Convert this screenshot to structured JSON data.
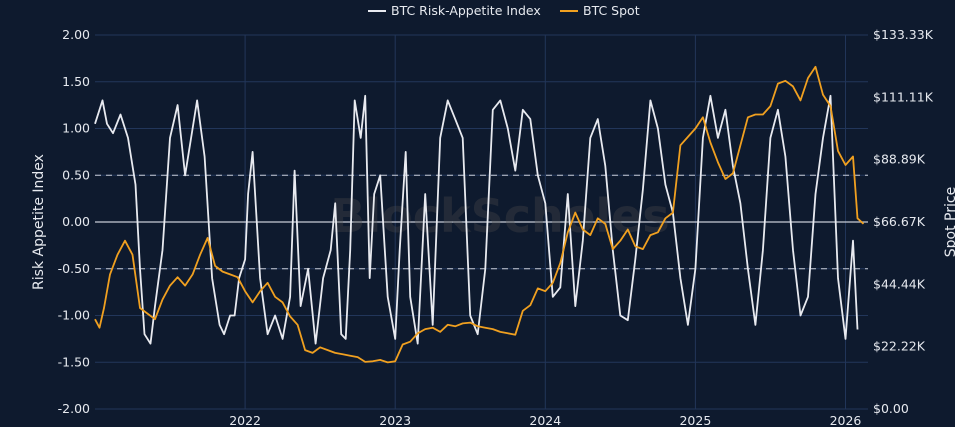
{
  "chart_data": {
    "type": "line",
    "title": "",
    "watermark": "BlockScholes",
    "legend": {
      "placement": "top-center",
      "entries": [
        "BTC Risk-Appetite Index",
        "BTC Spot"
      ]
    },
    "y_left": {
      "label": "Risk Appetite Index",
      "range": [
        -2.0,
        2.0
      ],
      "ticks": [
        "2.00",
        "1.50",
        "1.00",
        "0.50",
        "0.00",
        "-0.50",
        "-1.00",
        "-1.50",
        "-2.00"
      ],
      "tick_values": [
        2.0,
        1.5,
        1.0,
        0.5,
        0.0,
        -0.5,
        -1.0,
        -1.5,
        -2.0
      ]
    },
    "y_right": {
      "label": "Spot Price",
      "range": [
        0,
        133330
      ],
      "ticks": [
        "$133.33K",
        "$111.11K",
        "$88.89K",
        "$66.67K",
        "$44.44K",
        "$22.22K",
        "$0.00"
      ],
      "tick_values": [
        133330,
        111110,
        88890,
        66670,
        44440,
        22220,
        0
      ]
    },
    "x_axis": {
      "range": [
        2021.0,
        2026.15
      ],
      "ticks": [
        "2022",
        "2023",
        "2024",
        "2025",
        "2026"
      ],
      "tick_values": [
        2022,
        2023,
        2024,
        2025,
        2026
      ]
    },
    "reference_lines": {
      "solid": [
        0.0
      ],
      "dashed": [
        0.5,
        -0.5
      ]
    },
    "colors": {
      "background": "#0e1a2e",
      "grid": "#22365a",
      "axis_text": "#e6e9ef",
      "risk_index": "#e8eaf0",
      "spot": "#f0a020",
      "ref_line": "#c8ccd6"
    },
    "series": [
      {
        "name": "BTC Risk-Appetite Index",
        "axis": "left",
        "color": "#e8eaf0",
        "x": [
          2021.0,
          2021.05,
          2021.08,
          2021.12,
          2021.17,
          2021.22,
          2021.27,
          2021.3,
          2021.33,
          2021.37,
          2021.4,
          2021.45,
          2021.5,
          2021.55,
          2021.6,
          2021.68,
          2021.73,
          2021.78,
          2021.83,
          2021.86,
          2021.9,
          2021.93,
          2021.96,
          2022.0,
          2022.02,
          2022.05,
          2022.1,
          2022.15,
          2022.2,
          2022.25,
          2022.3,
          2022.33,
          2022.37,
          2022.42,
          2022.47,
          2022.52,
          2022.57,
          2022.6,
          2022.64,
          2022.67,
          2022.7,
          2022.73,
          2022.77,
          2022.8,
          2022.83,
          2022.86,
          2022.9,
          2022.95,
          2023.0,
          2023.03,
          2023.07,
          2023.1,
          2023.15,
          2023.2,
          2023.25,
          2023.3,
          2023.35,
          2023.4,
          2023.45,
          2023.5,
          2023.55,
          2023.6,
          2023.65,
          2023.7,
          2023.75,
          2023.8,
          2023.85,
          2023.9,
          2023.95,
          2024.0,
          2024.05,
          2024.1,
          2024.15,
          2024.2,
          2024.25,
          2024.3,
          2024.35,
          2024.4,
          2024.45,
          2024.5,
          2024.55,
          2024.6,
          2024.65,
          2024.7,
          2024.75,
          2024.8,
          2024.85,
          2024.9,
          2024.95,
          2025.0,
          2025.05,
          2025.1,
          2025.15,
          2025.2,
          2025.25,
          2025.3,
          2025.35,
          2025.4,
          2025.45,
          2025.5,
          2025.55,
          2025.6,
          2025.65,
          2025.7,
          2025.75,
          2025.8,
          2025.85,
          2025.9,
          2025.95,
          2026.0,
          2026.05,
          2026.08
        ],
        "values": [
          1.05,
          1.3,
          1.05,
          0.95,
          1.15,
          0.9,
          0.4,
          -0.5,
          -1.2,
          -1.3,
          -0.9,
          -0.3,
          0.9,
          1.25,
          0.5,
          1.3,
          0.7,
          -0.6,
          -1.1,
          -1.2,
          -1.0,
          -1.0,
          -0.6,
          -0.4,
          0.3,
          0.75,
          -0.6,
          -1.2,
          -1.0,
          -1.25,
          -0.8,
          0.55,
          -0.9,
          -0.5,
          -1.3,
          -0.6,
          -0.3,
          0.2,
          -1.2,
          -1.25,
          -0.3,
          1.3,
          0.9,
          1.35,
          -0.6,
          0.3,
          0.5,
          -0.8,
          -1.25,
          -0.3,
          0.75,
          -0.8,
          -1.3,
          0.3,
          -1.1,
          0.9,
          1.3,
          1.1,
          0.9,
          -1.0,
          -1.2,
          -0.5,
          1.2,
          1.3,
          1.0,
          0.55,
          1.2,
          1.1,
          0.5,
          0.2,
          -0.8,
          -0.7,
          0.3,
          -0.9,
          -0.2,
          0.9,
          1.1,
          0.6,
          -0.3,
          -1.0,
          -1.05,
          -0.4,
          0.35,
          1.3,
          1.0,
          0.4,
          0.1,
          -0.6,
          -1.1,
          -0.5,
          0.9,
          1.35,
          0.9,
          1.2,
          0.6,
          0.2,
          -0.5,
          -1.1,
          -0.3,
          0.9,
          1.2,
          0.7,
          -0.3,
          -1.0,
          -0.8,
          0.3,
          0.9,
          1.35,
          -0.6,
          -1.25,
          -0.2,
          -1.15
        ]
      },
      {
        "name": "BTC Spot",
        "axis": "right",
        "color": "#f0a020",
        "x": [
          2021.0,
          2021.03,
          2021.06,
          2021.1,
          2021.15,
          2021.2,
          2021.25,
          2021.3,
          2021.35,
          2021.4,
          2021.45,
          2021.5,
          2021.55,
          2021.6,
          2021.65,
          2021.7,
          2021.75,
          2021.8,
          2021.85,
          2021.9,
          2021.95,
          2022.0,
          2022.05,
          2022.1,
          2022.15,
          2022.2,
          2022.25,
          2022.3,
          2022.35,
          2022.4,
          2022.45,
          2022.5,
          2022.55,
          2022.6,
          2022.65,
          2022.7,
          2022.75,
          2022.8,
          2022.85,
          2022.9,
          2022.95,
          2023.0,
          2023.05,
          2023.1,
          2023.15,
          2023.2,
          2023.25,
          2023.3,
          2023.35,
          2023.4,
          2023.45,
          2023.5,
          2023.55,
          2023.6,
          2023.65,
          2023.7,
          2023.75,
          2023.8,
          2023.85,
          2023.9,
          2023.95,
          2024.0,
          2024.05,
          2024.1,
          2024.15,
          2024.2,
          2024.25,
          2024.3,
          2024.35,
          2024.4,
          2024.45,
          2024.5,
          2024.55,
          2024.6,
          2024.65,
          2024.7,
          2024.75,
          2024.8,
          2024.85,
          2024.9,
          2024.95,
          2025.0,
          2025.05,
          2025.1,
          2025.15,
          2025.2,
          2025.25,
          2025.3,
          2025.35,
          2025.4,
          2025.45,
          2025.5,
          2025.55,
          2025.6,
          2025.65,
          2025.7,
          2025.75,
          2025.8,
          2025.85,
          2025.9,
          2025.95,
          2026.0,
          2026.05,
          2026.08,
          2026.12
        ],
        "values": [
          32000,
          29000,
          36000,
          48000,
          55000,
          60000,
          55000,
          36000,
          34000,
          32000,
          39000,
          44000,
          47000,
          44000,
          48000,
          55000,
          61000,
          51000,
          49000,
          48000,
          47000,
          42000,
          38000,
          42000,
          45000,
          40000,
          38000,
          33000,
          30000,
          21000,
          20000,
          22000,
          21000,
          20000,
          19500,
          19000,
          18500,
          16800,
          17000,
          17500,
          16600,
          17000,
          23000,
          24000,
          27000,
          28500,
          29000,
          27500,
          30000,
          29500,
          30500,
          30800,
          29500,
          29000,
          28500,
          27500,
          27000,
          26500,
          35000,
          37000,
          43000,
          42000,
          45000,
          52000,
          63000,
          70000,
          64000,
          62000,
          68000,
          66000,
          57000,
          60000,
          64000,
          58000,
          57000,
          62000,
          63000,
          68000,
          70000,
          94000,
          97000,
          100000,
          104000,
          95000,
          88000,
          82000,
          84000,
          94000,
          104000,
          105000,
          105000,
          108000,
          116000,
          117000,
          115000,
          110000,
          118000,
          122000,
          112000,
          108000,
          92000,
          87000,
          90000,
          68000,
          66000
        ]
      }
    ]
  }
}
